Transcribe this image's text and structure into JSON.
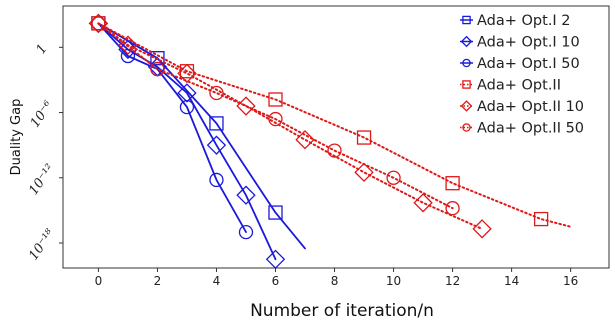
{
  "chart_data": {
    "type": "line",
    "xlabel": "Number of iteration/n",
    "ylabel": "Duality Gap",
    "xlim": [
      -1.2,
      17.3
    ],
    "ylim": [
      -20.3,
      3.8
    ],
    "y_scale": "log10",
    "xticks": [
      0,
      2,
      4,
      6,
      8,
      10,
      12,
      14,
      16
    ],
    "yticks": [
      {
        "exp": 0,
        "label": "1"
      },
      {
        "exp": -6,
        "label": "10⁻⁶"
      },
      {
        "exp": -12,
        "label": "10⁻¹²"
      },
      {
        "exp": -18,
        "label": "10⁻¹⁸"
      }
    ],
    "legend_position": "top-right",
    "series": [
      {
        "name": "Ada+ Opt.I 2",
        "color": "#1a1adc",
        "marker": "square",
        "line": "solid",
        "x": [
          0,
          2,
          4,
          6,
          7
        ],
        "y_exp": [
          2.2,
          -1.0,
          -7.0,
          -15.2,
          -18.5
        ]
      },
      {
        "name": "Ada+ Opt.I 10",
        "color": "#1a1adc",
        "marker": "diamond",
        "line": "solid",
        "x": [
          0,
          1,
          2,
          3,
          4,
          5,
          6
        ],
        "y_exp": [
          2.2,
          -0.2,
          -1.8,
          -4.2,
          -9.0,
          -13.6,
          -19.5
        ]
      },
      {
        "name": "Ada+ Opt.I 50",
        "color": "#1a1adc",
        "marker": "circle",
        "line": "solid",
        "x": [
          0,
          1,
          2,
          3,
          4,
          5
        ],
        "y_exp": [
          2.2,
          -0.8,
          -2.0,
          -5.5,
          -12.2,
          -17.0
        ]
      },
      {
        "name": "Ada+ Opt.II",
        "color": "#e01818",
        "marker": "square",
        "line": "dotted",
        "x": [
          0,
          3,
          6,
          9,
          12,
          15,
          16
        ],
        "y_exp": [
          2.2,
          -2.2,
          -4.8,
          -8.3,
          -12.5,
          -15.8,
          -16.5
        ]
      },
      {
        "name": "Ada+ Opt.II 10",
        "color": "#e01818",
        "marker": "diamond",
        "line": "dotted",
        "x": [
          0,
          1,
          3,
          5,
          7,
          9,
          11,
          13
        ],
        "y_exp": [
          2.2,
          0.2,
          -2.4,
          -5.4,
          -8.5,
          -11.5,
          -14.3,
          -16.7
        ]
      },
      {
        "name": "Ada+ Opt.II 50",
        "color": "#e01818",
        "marker": "circle",
        "line": "dotted",
        "x": [
          0,
          2,
          4,
          6,
          8,
          10,
          12
        ],
        "y_exp": [
          2.2,
          -2.0,
          -4.2,
          -6.6,
          -9.5,
          -12.0,
          -14.8
        ]
      }
    ]
  }
}
